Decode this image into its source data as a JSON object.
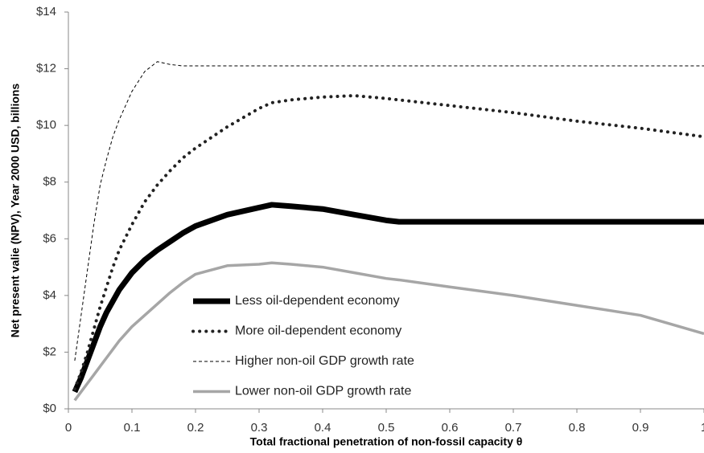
{
  "chart_data": {
    "type": "line",
    "y_label": "Net present valie (NPV), Year 2000 USD, billions",
    "x_label": "Total fractional penetration of non-fossil capacity θ",
    "x": [
      0.01,
      0.02,
      0.03,
      0.04,
      0.05,
      0.06,
      0.07,
      0.08,
      0.1,
      0.12,
      0.14,
      0.16,
      0.18,
      0.2,
      0.25,
      0.3,
      0.32,
      0.35,
      0.4,
      0.45,
      0.5,
      0.52,
      0.6,
      0.7,
      0.8,
      0.9,
      1
    ],
    "series": [
      {
        "name": "Less oil-dependent economy",
        "color": "#000000",
        "dash": "solid",
        "width": 7,
        "values": [
          0.6,
          1.1,
          1.7,
          2.3,
          2.9,
          3.4,
          3.8,
          4.2,
          4.8,
          5.25,
          5.6,
          5.9,
          6.2,
          6.45,
          6.85,
          7.1,
          7.2,
          7.15,
          7.05,
          6.85,
          6.65,
          6.6,
          6.6,
          6.6,
          6.6,
          6.6,
          6.6
        ]
      },
      {
        "name": "More oil-dependent economy",
        "color": "#222222",
        "dash": "dotted",
        "width": 4,
        "values": [
          0.7,
          1.3,
          2.0,
          2.8,
          3.6,
          4.3,
          5.0,
          5.6,
          6.5,
          7.3,
          7.9,
          8.4,
          8.85,
          9.2,
          9.95,
          10.6,
          10.8,
          10.9,
          11.0,
          11.05,
          10.95,
          10.9,
          10.7,
          10.45,
          10.15,
          9.9,
          9.6
        ]
      },
      {
        "name": "Higher non-oil GDP growth rate",
        "color": "#000000",
        "dash": "dashed",
        "width": 1,
        "values": [
          1.7,
          3.3,
          4.9,
          6.5,
          7.9,
          8.8,
          9.6,
          10.2,
          11.2,
          11.9,
          12.25,
          12.15,
          12.1,
          12.1,
          12.1,
          12.1,
          12.1,
          12.1,
          12.1,
          12.1,
          12.1,
          12.1,
          12.1,
          12.1,
          12.1,
          12.1,
          12.1
        ]
      },
      {
        "name": "Lower non-oil GDP growth rate",
        "color": "#a6a6a6",
        "dash": "solid",
        "width": 3.5,
        "values": [
          0.3,
          0.6,
          0.9,
          1.2,
          1.5,
          1.8,
          2.1,
          2.4,
          2.9,
          3.3,
          3.7,
          4.1,
          4.45,
          4.75,
          5.05,
          5.1,
          5.15,
          5.1,
          5.0,
          4.8,
          4.6,
          4.55,
          4.3,
          4.0,
          3.65,
          3.3,
          2.65
        ]
      }
    ],
    "xlim": [
      0,
      1
    ],
    "xticks": [
      0,
      0.1,
      0.2,
      0.3,
      0.4,
      0.5,
      0.6,
      0.7,
      0.8,
      0.9,
      1
    ],
    "ylim": [
      0,
      14
    ],
    "yticks": [
      {
        "value": 0,
        "label": "$0"
      },
      {
        "value": 2,
        "label": "$2"
      },
      {
        "value": 4,
        "label": "$4"
      },
      {
        "value": 6,
        "label": "$6"
      },
      {
        "value": 8,
        "label": "$8"
      },
      {
        "value": 10,
        "label": "$10"
      },
      {
        "value": 12,
        "label": "$12"
      },
      {
        "value": 14,
        "label": "$14"
      }
    ],
    "grid": false,
    "legend_position": "lower-left"
  }
}
